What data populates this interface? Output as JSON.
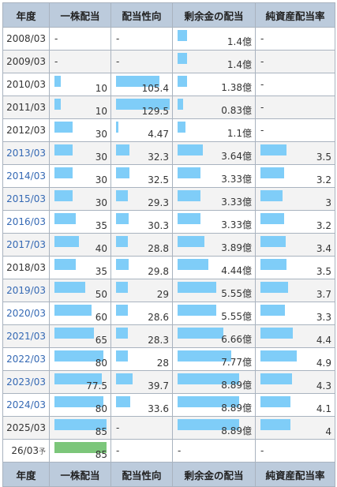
{
  "table": {
    "headers": [
      "年度",
      "一株配当",
      "配当性向",
      "剰余金の配当",
      "純資産配当率"
    ],
    "rows": [
      {
        "year": "2008/03",
        "link": false,
        "div": null,
        "payout": null,
        "surplus": 1.4,
        "surplus_label": "1.4億",
        "nav": null
      },
      {
        "year": "2009/03",
        "link": false,
        "div": null,
        "payout": null,
        "surplus": 1.4,
        "surplus_label": "1.4億",
        "nav": null
      },
      {
        "year": "2010/03",
        "link": false,
        "div": 10,
        "div_label": "10",
        "payout": 105.4,
        "payout_label": "105.4",
        "surplus": 1.38,
        "surplus_label": "1.38億",
        "nav": null
      },
      {
        "year": "2011/03",
        "link": false,
        "div": 10,
        "div_label": "10",
        "payout": 129.5,
        "payout_label": "129.5",
        "surplus": 0.83,
        "surplus_label": "0.83億",
        "nav": null
      },
      {
        "year": "2012/03",
        "link": false,
        "div": 30,
        "div_label": "30",
        "payout": 4.47,
        "payout_label": "4.47",
        "surplus": 1.1,
        "surplus_label": "1.1億",
        "nav": null
      },
      {
        "year": "2013/03",
        "link": true,
        "div": 30,
        "div_label": "30",
        "payout": 32.3,
        "payout_label": "32.3",
        "surplus": 3.64,
        "surplus_label": "3.64億",
        "nav": 3.5,
        "nav_label": "3.5"
      },
      {
        "year": "2014/03",
        "link": true,
        "div": 30,
        "div_label": "30",
        "payout": 32.5,
        "payout_label": "32.5",
        "surplus": 3.33,
        "surplus_label": "3.33億",
        "nav": 3.2,
        "nav_label": "3.2"
      },
      {
        "year": "2015/03",
        "link": true,
        "div": 30,
        "div_label": "30",
        "payout": 29.3,
        "payout_label": "29.3",
        "surplus": 3.33,
        "surplus_label": "3.33億",
        "nav": 3,
        "nav_label": "3"
      },
      {
        "year": "2016/03",
        "link": true,
        "div": 35,
        "div_label": "35",
        "payout": 30.3,
        "payout_label": "30.3",
        "surplus": 3.33,
        "surplus_label": "3.33億",
        "nav": 3.2,
        "nav_label": "3.2"
      },
      {
        "year": "2017/03",
        "link": true,
        "div": 40,
        "div_label": "40",
        "payout": 28.8,
        "payout_label": "28.8",
        "surplus": 3.89,
        "surplus_label": "3.89億",
        "nav": 3.4,
        "nav_label": "3.4"
      },
      {
        "year": "2018/03",
        "link": false,
        "div": 35,
        "div_label": "35",
        "payout": 29.8,
        "payout_label": "29.8",
        "surplus": 4.44,
        "surplus_label": "4.44億",
        "nav": 3.5,
        "nav_label": "3.5"
      },
      {
        "year": "2019/03",
        "link": true,
        "div": 50,
        "div_label": "50",
        "payout": 29,
        "payout_label": "29",
        "surplus": 5.55,
        "surplus_label": "5.55億",
        "nav": 3.7,
        "nav_label": "3.7"
      },
      {
        "year": "2020/03",
        "link": true,
        "div": 60,
        "div_label": "60",
        "payout": 28.6,
        "payout_label": "28.6",
        "surplus": 5.55,
        "surplus_label": "5.55億",
        "nav": 3.3,
        "nav_label": "3.3"
      },
      {
        "year": "2021/03",
        "link": true,
        "div": 65,
        "div_label": "65",
        "payout": 28.3,
        "payout_label": "28.3",
        "surplus": 6.66,
        "surplus_label": "6.66億",
        "nav": 4.4,
        "nav_label": "4.4"
      },
      {
        "year": "2022/03",
        "link": true,
        "div": 80,
        "div_label": "80",
        "payout": 28,
        "payout_label": "28",
        "surplus": 7.77,
        "surplus_label": "7.77億",
        "nav": 4.9,
        "nav_label": "4.9"
      },
      {
        "year": "2023/03",
        "link": true,
        "div": 77.5,
        "div_label": "77.5",
        "payout": 39.7,
        "payout_label": "39.7",
        "surplus": 8.89,
        "surplus_label": "8.89億",
        "nav": 4.3,
        "nav_label": "4.3"
      },
      {
        "year": "2024/03",
        "link": true,
        "div": 80,
        "div_label": "80",
        "payout": 33.6,
        "payout_label": "33.6",
        "surplus": 8.89,
        "surplus_label": "8.89億",
        "nav": 4.1,
        "nav_label": "4.1"
      },
      {
        "year": "2025/03",
        "link": false,
        "div": 85,
        "div_label": "85",
        "payout": null,
        "surplus": 8.89,
        "surplus_label": "8.89億",
        "nav": 4,
        "nav_label": "4"
      },
      {
        "year": "26/03",
        "yo": "予",
        "link": false,
        "div": 85,
        "div_label": "85",
        "estimate": true,
        "payout": null,
        "surplus": null,
        "nav": null
      }
    ],
    "dash": "-",
    "max": {
      "div": 85,
      "payout": 129.5,
      "surplus": 8.89,
      "nav": 4.9
    },
    "colors": {
      "bar": "#7fcdf8",
      "estimate_bar": "#7cc67a",
      "header_bg": "#bccbdc",
      "link": "#3569b4"
    }
  }
}
